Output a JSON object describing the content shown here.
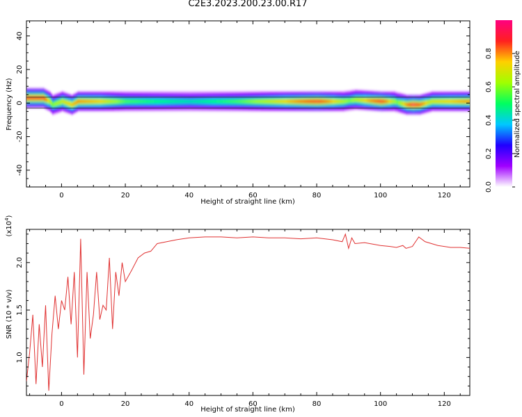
{
  "title": "C2E3.2023.200.23.00.R17",
  "chart_data": [
    {
      "type": "heatmap",
      "xlabel": "Height of straight line (km)",
      "ylabel": "Frequency (Hz)",
      "xlim": [
        -11,
        128
      ],
      "ylim": [
        -50,
        49
      ],
      "xticks": [
        0,
        20,
        40,
        60,
        80,
        100,
        120
      ],
      "yticks": [
        -40,
        -20,
        0,
        20,
        40
      ],
      "colorbar": {
        "label": "Normalized spectral amplitude",
        "range": [
          0.0,
          1.0
        ],
        "ticks": [
          "0.0",
          "0.2",
          "0.4",
          "0.6",
          "0.8"
        ],
        "colors": [
          "#ffffff",
          "#a000ff",
          "#2000ff",
          "#00c8ff",
          "#00ff60",
          "#a0ff00",
          "#ffd000",
          "#ff2020",
          "#ff0080"
        ]
      },
      "band_centers_hz": [
        {
          "x": -10,
          "f": 3
        },
        {
          "x": -6,
          "f": 3
        },
        {
          "x": -4,
          "f": 1
        },
        {
          "x": -3,
          "f": -1
        },
        {
          "x": 0,
          "f": 1
        },
        {
          "x": 3,
          "f": -1
        },
        {
          "x": 5,
          "f": 1
        },
        {
          "x": 10,
          "f": 1
        },
        {
          "x": 20,
          "f": 1
        },
        {
          "x": 40,
          "f": 1
        },
        {
          "x": 60,
          "f": 1
        },
        {
          "x": 80,
          "f": 1
        },
        {
          "x": 88,
          "f": 1
        },
        {
          "x": 92,
          "f": 2
        },
        {
          "x": 100,
          "f": 1
        },
        {
          "x": 104,
          "f": 1
        },
        {
          "x": 108,
          "f": -1
        },
        {
          "x": 112,
          "f": -1
        },
        {
          "x": 116,
          "f": 1
        },
        {
          "x": 128,
          "f": 1
        }
      ],
      "band_intensity": [
        {
          "x": -10,
          "a": 0.9
        },
        {
          "x": -6,
          "a": 0.9
        },
        {
          "x": -3,
          "a": 0.6
        },
        {
          "x": 0,
          "a": 0.7
        },
        {
          "x": 5,
          "a": 0.8
        },
        {
          "x": 12,
          "a": 0.75
        },
        {
          "x": 20,
          "a": 0.55
        },
        {
          "x": 40,
          "a": 0.45
        },
        {
          "x": 55,
          "a": 0.55
        },
        {
          "x": 70,
          "a": 0.75
        },
        {
          "x": 80,
          "a": 0.9
        },
        {
          "x": 90,
          "a": 0.6
        },
        {
          "x": 100,
          "a": 0.9
        },
        {
          "x": 105,
          "a": 0.6
        },
        {
          "x": 110,
          "a": 0.95
        },
        {
          "x": 115,
          "a": 0.7
        },
        {
          "x": 128,
          "a": 0.8
        }
      ]
    },
    {
      "type": "line",
      "xlabel": "Height of straight line (km)",
      "ylabel": "SNR (10 * v/v)",
      "scale_note": "(x10",
      "scale_exp": "4",
      "scale_close": ")",
      "xlim": [
        -11,
        128
      ],
      "ylim": [
        0.6,
        2.35
      ],
      "xticks": [
        0,
        20,
        40,
        60,
        80,
        100,
        120
      ],
      "yticks": [
        "1.0",
        "1.5",
        "2.0"
      ],
      "series_color": "#e03030",
      "series": [
        {
          "x": [
            -11,
            -10,
            -9,
            -8,
            -7,
            -6,
            -5,
            -4,
            -3,
            -2,
            -1,
            0,
            1,
            2,
            3,
            4,
            5,
            6,
            7,
            8,
            9,
            10,
            11,
            12,
            13,
            14,
            15,
            16,
            17,
            18,
            19,
            20,
            22,
            24,
            26,
            28,
            30,
            33,
            36,
            40,
            45,
            50,
            55,
            60,
            65,
            70,
            75,
            80,
            85,
            88,
            89,
            90,
            91,
            92,
            95,
            100,
            103,
            105,
            107,
            108,
            110,
            111,
            112,
            114,
            116,
            118,
            120,
            122,
            125,
            128
          ],
          "y": [
            0.75,
            1.05,
            1.45,
            0.72,
            1.35,
            0.9,
            1.55,
            0.65,
            1.25,
            1.65,
            1.3,
            1.6,
            1.5,
            1.85,
            1.35,
            1.9,
            1.0,
            2.25,
            0.82,
            1.9,
            1.2,
            1.45,
            1.9,
            1.4,
            1.55,
            1.5,
            2.05,
            1.3,
            1.9,
            1.65,
            2.0,
            1.8,
            1.92,
            2.05,
            2.1,
            2.12,
            2.2,
            2.22,
            2.24,
            2.26,
            2.27,
            2.27,
            2.26,
            2.27,
            2.26,
            2.26,
            2.25,
            2.26,
            2.24,
            2.22,
            2.3,
            2.15,
            2.26,
            2.2,
            2.21,
            2.18,
            2.17,
            2.16,
            2.18,
            2.15,
            2.17,
            2.22,
            2.27,
            2.22,
            2.2,
            2.18,
            2.17,
            2.16,
            2.16,
            2.15
          ]
        }
      ]
    }
  ]
}
